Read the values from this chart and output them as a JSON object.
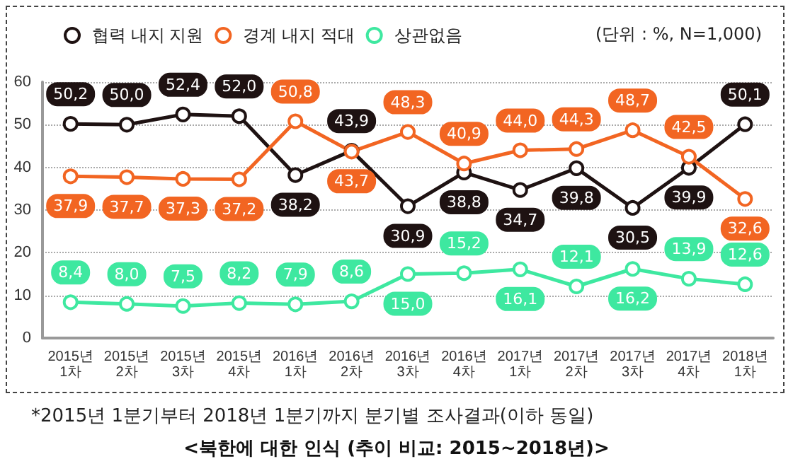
{
  "chart_data": {
    "type": "line",
    "title": "<북한에 대한 인식 (추이 비교: 2015~2018년)>",
    "annotations": [
      "(단위 : %, N=1,000)",
      "*2015년 1분기부터 2018년 1분기까지 분기별 조사결과(이하 동일)"
    ],
    "categories": [
      "2015년 1차",
      "2015년 2차",
      "2015년 3차",
      "2015년 4차",
      "2016년 1차",
      "2016년 2차",
      "2016년 3차",
      "2016년 4차",
      "2017년 1차",
      "2017년 2차",
      "2017년 3차",
      "2017년 4차",
      "2018년 1차"
    ],
    "series": [
      {
        "name": "협력 내지 지원",
        "color": "#1e1212",
        "values": [
          50.2,
          50.0,
          52.4,
          52.0,
          38.2,
          43.9,
          30.9,
          38.8,
          34.7,
          39.8,
          30.5,
          39.9,
          50.1
        ],
        "value_labels": [
          "50,2",
          "50,0",
          "52,4",
          "52,0",
          "38,2",
          "43,9",
          "30,9",
          "38,8",
          "34,7",
          "39,8",
          "30,5",
          "39,9",
          "50,1"
        ]
      },
      {
        "name": "경계 내지 적대",
        "color": "#f26522",
        "values": [
          37.9,
          37.7,
          37.3,
          37.2,
          50.8,
          43.7,
          48.3,
          40.9,
          44.0,
          44.3,
          48.7,
          42.5,
          32.6
        ],
        "value_labels": [
          "37,9",
          "37,7",
          "37,3",
          "37,2",
          "50,8",
          "43,7",
          "48,3",
          "40,9",
          "44,0",
          "44,3",
          "48,7",
          "42,5",
          "32,6"
        ]
      },
      {
        "name": "상관없음",
        "color": "#3ee8a0",
        "values": [
          8.4,
          8.0,
          7.5,
          8.2,
          7.9,
          8.6,
          15.0,
          15.2,
          16.1,
          12.1,
          16.2,
          13.9,
          12.6
        ],
        "value_labels": [
          "8,4",
          "8,0",
          "7,5",
          "8,2",
          "7,9",
          "8,6",
          "15,0",
          "15,2",
          "16,1",
          "12,1",
          "16,2",
          "13,9",
          "12,6"
        ]
      }
    ],
    "ylim": [
      0,
      60
    ],
    "yticks": [
      0,
      10,
      20,
      30,
      40,
      50,
      60
    ],
    "grid": "y",
    "legend": "top left",
    "marker": "circle",
    "line_style": "solid"
  }
}
